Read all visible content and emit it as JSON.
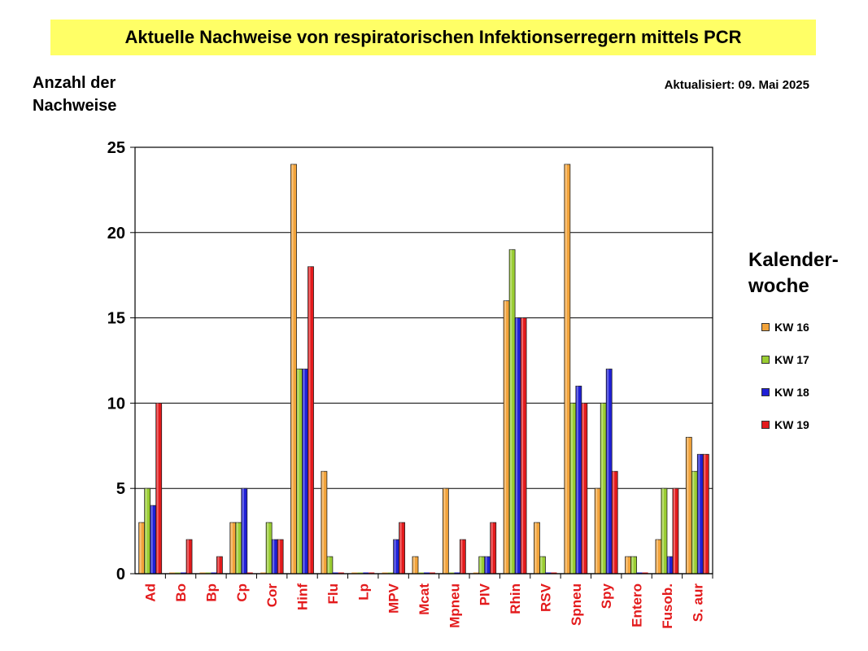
{
  "title": "Aktuelle Nachweise von respiratorischen Infektionserregern mittels PCR",
  "updated": "Aktualisiert:  09. Mai 2025",
  "ylabel_line1": "Anzahl der",
  "ylabel_line2": "Nachweise",
  "legend_title_line1": "Kalender-",
  "legend_title_line2": "woche",
  "colors": {
    "KW 16": "#f2a33a",
    "KW 17": "#9acd32",
    "KW 18": "#1f1fd6",
    "KW 19": "#e31a1c",
    "category_label": "#e31a1c",
    "title_bg": "#ffff66"
  },
  "chart_data": {
    "type": "bar",
    "categories": [
      "Ad",
      "Bo",
      "Bp",
      "Cp",
      "Cor",
      "Hinf",
      "Flu",
      "Lp",
      "MPV",
      "Mcat",
      "Mpneu",
      "PIV",
      "Rhin",
      "RSV",
      "Spneu",
      "Spy",
      "Entero",
      "Fusob.",
      "S. aur"
    ],
    "series": [
      {
        "name": "KW 16",
        "values": [
          3,
          0,
          0,
          3,
          0,
          24,
          6,
          0,
          0,
          1,
          5,
          0,
          16,
          3,
          24,
          5,
          1,
          2,
          8
        ]
      },
      {
        "name": "KW 17",
        "values": [
          5,
          0,
          0,
          3,
          3,
          12,
          1,
          0,
          0,
          0,
          0,
          1,
          19,
          1,
          10,
          10,
          1,
          5,
          6
        ]
      },
      {
        "name": "KW 18",
        "values": [
          4,
          0,
          0,
          5,
          2,
          12,
          0,
          0,
          2,
          0,
          0,
          1,
          15,
          0,
          11,
          12,
          0,
          1,
          7
        ]
      },
      {
        "name": "KW 19",
        "values": [
          10,
          2,
          1,
          0,
          2,
          18,
          0,
          0,
          3,
          0,
          2,
          3,
          15,
          0,
          10,
          6,
          0,
          5,
          7
        ]
      }
    ],
    "ylim": [
      0,
      25
    ],
    "yticks": [
      0,
      5,
      10,
      15,
      20,
      25
    ],
    "grid": true,
    "legend_position": "right"
  }
}
